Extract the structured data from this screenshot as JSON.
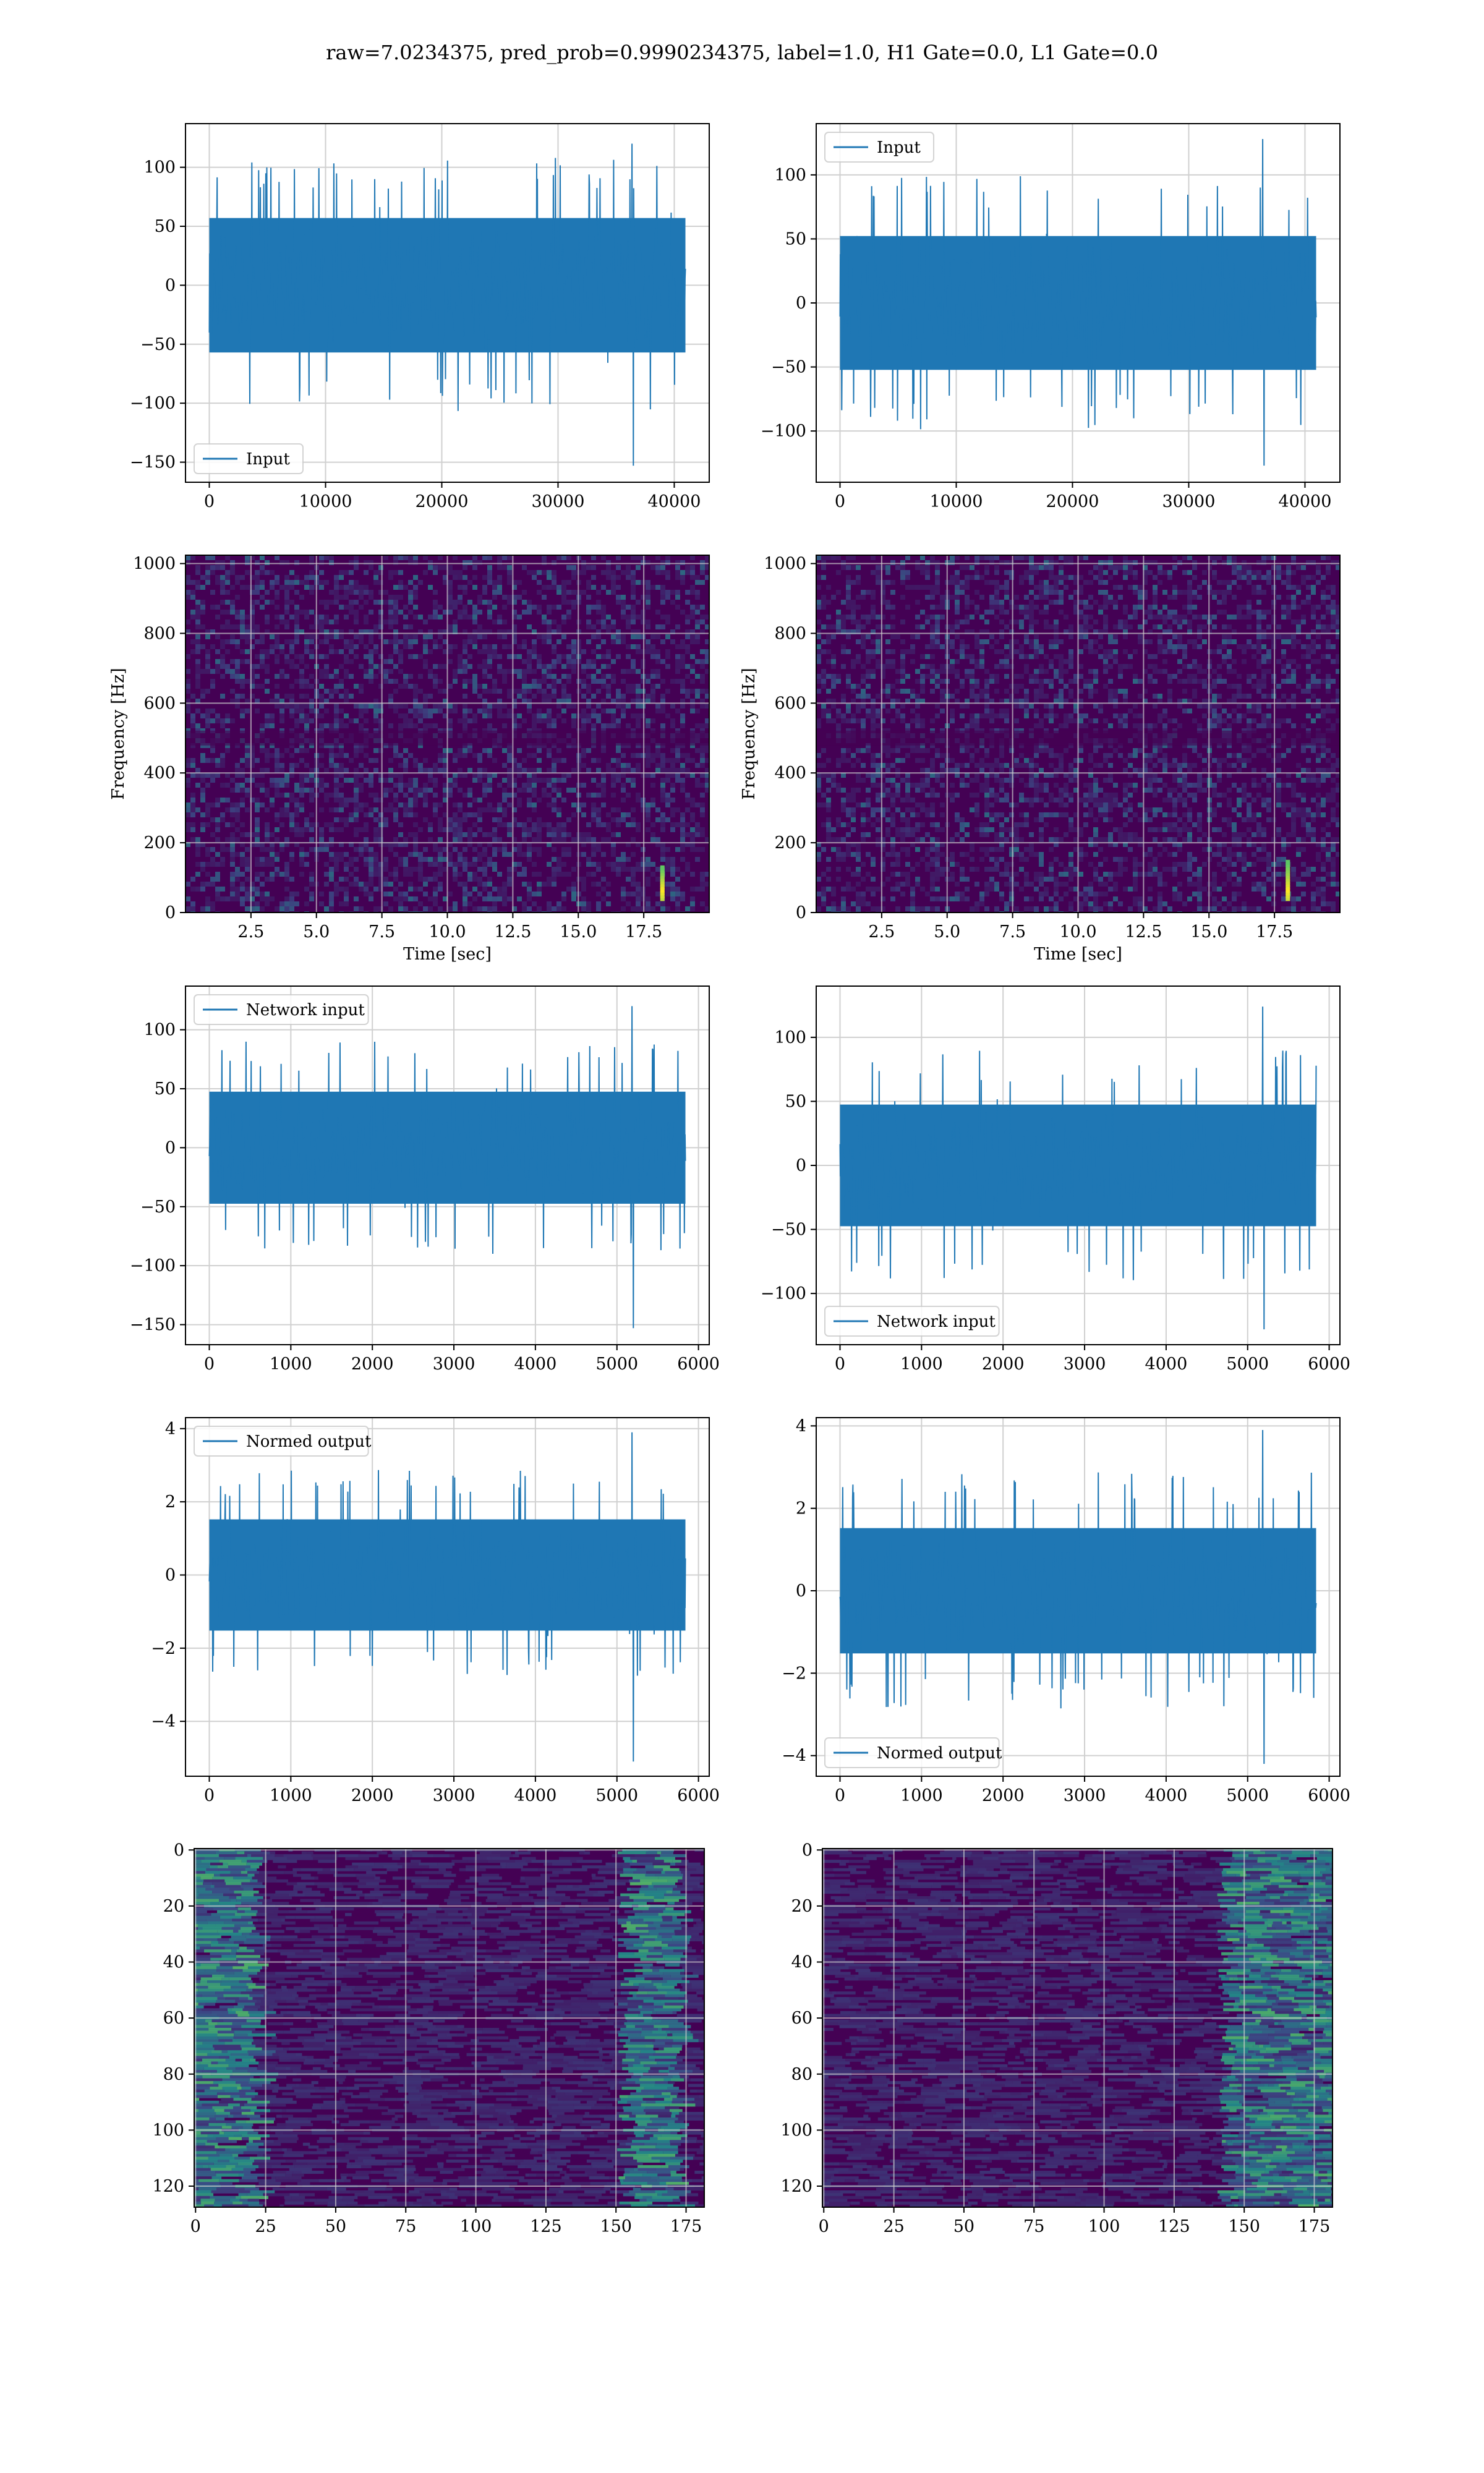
{
  "title": "raw=7.0234375, pred_prob=0.9990234375, label=1.0, H1 Gate=0.0, L1 Gate=0.0",
  "colors": {
    "line": "#1f77b4",
    "grid": "#d0d0d0",
    "heat_low": "#440154",
    "heat_mid": "#21918c",
    "heat_high": "#fde725"
  },
  "chart_data": [
    {
      "id": "h1-input",
      "type": "line",
      "title": "",
      "series": [
        {
          "name": "Input",
          "values": [],
          "approx_amplitude": 60,
          "extreme_min": -153,
          "extreme_max": 120,
          "n_samples": 40960
        }
      ],
      "xlim": [
        -2048,
        43008
      ],
      "ylim": [
        -167,
        137
      ],
      "xticks": [
        0,
        10000,
        20000,
        30000,
        40000
      ],
      "yticks": [
        -150,
        -100,
        -50,
        0,
        50,
        100
      ],
      "xlabel": "",
      "ylabel": "",
      "legend": "lower-left",
      "grid": true
    },
    {
      "id": "l1-input",
      "type": "line",
      "title": "",
      "series": [
        {
          "name": "Input",
          "values": [],
          "approx_amplitude": 55,
          "extreme_min": -127,
          "extreme_max": 128,
          "n_samples": 40960
        }
      ],
      "xlim": [
        -2048,
        43008
      ],
      "ylim": [
        -140,
        140
      ],
      "xticks": [
        0,
        10000,
        20000,
        30000,
        40000
      ],
      "yticks": [
        -100,
        -50,
        0,
        50,
        100
      ],
      "xlabel": "",
      "ylabel": "",
      "legend": "upper-left",
      "grid": true
    },
    {
      "id": "h1-spectrogram",
      "type": "heatmap",
      "title": "",
      "xlim": [
        0,
        20
      ],
      "ylim": [
        0,
        1024
      ],
      "xticks": [
        2.5,
        5.0,
        7.5,
        10.0,
        12.5,
        15.0,
        17.5
      ],
      "yticks": [
        0,
        200,
        400,
        600,
        800,
        1000
      ],
      "xlabel": "Time [sec]",
      "ylabel": "Frequency [Hz]",
      "grid": true,
      "features": [
        {
          "kind": "chirp",
          "time": 18.2,
          "freq_low": 40,
          "freq_high": 130
        }
      ]
    },
    {
      "id": "l1-spectrogram",
      "type": "heatmap",
      "title": "",
      "xlim": [
        0,
        20
      ],
      "ylim": [
        0,
        1024
      ],
      "xticks": [
        2.5,
        5.0,
        7.5,
        10.0,
        12.5,
        15.0,
        17.5
      ],
      "yticks": [
        0,
        200,
        400,
        600,
        800,
        1000
      ],
      "xlabel": "Time [sec]",
      "ylabel": "Frequency [Hz]",
      "grid": true,
      "features": [
        {
          "kind": "chirp",
          "time": 18.0,
          "freq_low": 40,
          "freq_high": 150
        }
      ]
    },
    {
      "id": "h1-network-input",
      "type": "line",
      "title": "",
      "series": [
        {
          "name": "Network input",
          "values": [],
          "approx_amplitude": 50,
          "extreme_min": -153,
          "extreme_max": 120,
          "n_samples": 5840
        }
      ],
      "xlim": [
        -292,
        6132
      ],
      "ylim": [
        -167,
        137
      ],
      "xticks": [
        0,
        1000,
        2000,
        3000,
        4000,
        5000,
        6000
      ],
      "yticks": [
        -150,
        -100,
        -50,
        0,
        50,
        100
      ],
      "xlabel": "",
      "ylabel": "",
      "legend": "upper-left",
      "grid": true
    },
    {
      "id": "l1-network-input",
      "type": "line",
      "title": "",
      "series": [
        {
          "name": "Network input",
          "values": [],
          "approx_amplitude": 50,
          "extreme_min": -128,
          "extreme_max": 124,
          "n_samples": 5840
        }
      ],
      "xlim": [
        -292,
        6132
      ],
      "ylim": [
        -140,
        140
      ],
      "xticks": [
        0,
        1000,
        2000,
        3000,
        4000,
        5000,
        6000
      ],
      "yticks": [
        -100,
        -50,
        0,
        50,
        100
      ],
      "xlabel": "",
      "ylabel": "",
      "legend": "lower-left",
      "grid": true
    },
    {
      "id": "h1-normed-output",
      "type": "line",
      "title": "",
      "series": [
        {
          "name": "Normed output",
          "values": [],
          "approx_amplitude": 1.6,
          "extreme_min": -5.1,
          "extreme_max": 3.9,
          "n_samples": 5840
        }
      ],
      "xlim": [
        -292,
        6132
      ],
      "ylim": [
        -5.5,
        4.3
      ],
      "xticks": [
        0,
        1000,
        2000,
        3000,
        4000,
        5000,
        6000
      ],
      "yticks": [
        -4,
        -2,
        0,
        2,
        4
      ],
      "xlabel": "",
      "ylabel": "",
      "legend": "upper-left",
      "grid": true
    },
    {
      "id": "l1-normed-output",
      "type": "line",
      "title": "",
      "series": [
        {
          "name": "Normed output",
          "values": [],
          "approx_amplitude": 1.6,
          "extreme_min": -4.2,
          "extreme_max": 3.9,
          "n_samples": 5840
        }
      ],
      "xlim": [
        -292,
        6132
      ],
      "ylim": [
        -4.5,
        4.2
      ],
      "xticks": [
        0,
        1000,
        2000,
        3000,
        4000,
        5000,
        6000
      ],
      "yticks": [
        -4,
        -2,
        0,
        2,
        4
      ],
      "xlabel": "",
      "ylabel": "",
      "legend": "lower-left",
      "grid": true
    },
    {
      "id": "h1-feature-map",
      "type": "heatmap",
      "title": "",
      "xlim": [
        -0.5,
        181.5
      ],
      "ylim": [
        127.5,
        -0.5
      ],
      "xticks": [
        0,
        25,
        50,
        75,
        100,
        125,
        150,
        175
      ],
      "yticks": [
        0,
        20,
        40,
        60,
        80,
        100,
        120
      ],
      "xlabel": "",
      "ylabel": "",
      "grid": true,
      "features": [
        {
          "kind": "bright_band",
          "x_from": 0,
          "x_to": 20
        },
        {
          "kind": "bright_band",
          "x_from": 150,
          "x_to": 170
        }
      ]
    },
    {
      "id": "l1-feature-map",
      "type": "heatmap",
      "title": "",
      "xlim": [
        -0.5,
        181.5
      ],
      "ylim": [
        127.5,
        -0.5
      ],
      "xticks": [
        0,
        25,
        50,
        75,
        100,
        125,
        150,
        175
      ],
      "yticks": [
        0,
        20,
        40,
        60,
        80,
        100,
        120
      ],
      "xlabel": "",
      "ylabel": "",
      "grid": true,
      "features": [
        {
          "kind": "bright_band",
          "x_from": 140,
          "x_to": 181
        }
      ]
    }
  ]
}
